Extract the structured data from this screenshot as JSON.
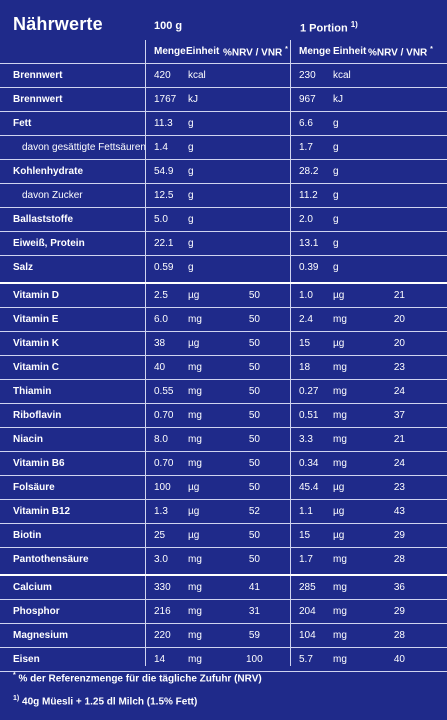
{
  "title": "Nährwerte",
  "header": {
    "per100": "100 g",
    "portion": "1 Portion",
    "portion_mark": "1)",
    "col_menge": "Menge",
    "col_einheit": "Einheit",
    "col_nrv": "%NRV / VNR",
    "col_nrv_mark": "*"
  },
  "rows": [
    {
      "name": "Brennwert",
      "m1": "420",
      "u1": "kcal",
      "n1": "",
      "m2": "230",
      "u2": "kcal",
      "n2": ""
    },
    {
      "name": "Brennwert",
      "m1": "1767",
      "u1": "kJ",
      "n1": "",
      "m2": "967",
      "u2": "kJ",
      "n2": ""
    },
    {
      "name": "Fett",
      "m1": "11.3",
      "u1": "g",
      "n1": "",
      "m2": "6.6",
      "u2": "g",
      "n2": ""
    },
    {
      "name": "davon gesättigte Fettsäuren",
      "m1": "1.4",
      "u1": "g",
      "n1": "",
      "m2": "1.7",
      "u2": "g",
      "n2": "",
      "indent": true
    },
    {
      "name": "Kohlenhydrate",
      "m1": "54.9",
      "u1": "g",
      "n1": "",
      "m2": "28.2",
      "u2": "g",
      "n2": ""
    },
    {
      "name": "davon Zucker",
      "m1": "12.5",
      "u1": "g",
      "n1": "",
      "m2": "11.2",
      "u2": "g",
      "n2": "",
      "indent": true
    },
    {
      "name": "Ballaststoffe",
      "m1": "5.0",
      "u1": "g",
      "n1": "",
      "m2": "2.0",
      "u2": "g",
      "n2": ""
    },
    {
      "name": "Eiweiß, Protein",
      "m1": "22.1",
      "u1": "g",
      "n1": "",
      "m2": "13.1",
      "u2": "g",
      "n2": ""
    },
    {
      "name": "Salz",
      "m1": "0.59",
      "u1": "g",
      "n1": "",
      "m2": "0.39",
      "u2": "g",
      "n2": ""
    },
    {
      "name": "Vitamin D",
      "m1": "2.5",
      "u1": "µg",
      "n1": "50",
      "m2": "1.0",
      "u2": "µg",
      "n2": "21"
    },
    {
      "name": "Vitamin E",
      "m1": "6.0",
      "u1": "mg",
      "n1": "50",
      "m2": "2.4",
      "u2": "mg",
      "n2": "20"
    },
    {
      "name": "Vitamin K",
      "m1": "38",
      "u1": "µg",
      "n1": "50",
      "m2": "15",
      "u2": "µg",
      "n2": "20"
    },
    {
      "name": "Vitamin C",
      "m1": "40",
      "u1": "mg",
      "n1": "50",
      "m2": "18",
      "u2": "mg",
      "n2": "23"
    },
    {
      "name": "Thiamin",
      "m1": "0.55",
      "u1": "mg",
      "n1": "50",
      "m2": "0.27",
      "u2": "mg",
      "n2": "24"
    },
    {
      "name": "Riboflavin",
      "m1": "0.70",
      "u1": "mg",
      "n1": "50",
      "m2": "0.51",
      "u2": "mg",
      "n2": "37"
    },
    {
      "name": "Niacin",
      "m1": "8.0",
      "u1": "mg",
      "n1": "50",
      "m2": "3.3",
      "u2": "mg",
      "n2": "21"
    },
    {
      "name": "Vitamin B6",
      "m1": "0.70",
      "u1": "mg",
      "n1": "50",
      "m2": "0.34",
      "u2": "mg",
      "n2": "24"
    },
    {
      "name": "Folsäure",
      "m1": "100",
      "u1": "µg",
      "n1": "50",
      "m2": "45.4",
      "u2": "µg",
      "n2": "23"
    },
    {
      "name": "Vitamin B12",
      "m1": "1.3",
      "u1": "µg",
      "n1": "52",
      "m2": "1.1",
      "u2": "µg",
      "n2": "43"
    },
    {
      "name": "Biotin",
      "m1": "25",
      "u1": "µg",
      "n1": "50",
      "m2": "15",
      "u2": "µg",
      "n2": "29"
    },
    {
      "name": "Pantothensäure",
      "m1": "3.0",
      "u1": "mg",
      "n1": "50",
      "m2": "1.7",
      "u2": "mg",
      "n2": "28"
    },
    {
      "name": "Calcium",
      "m1": "330",
      "u1": "mg",
      "n1": "41",
      "m2": "285",
      "u2": "mg",
      "n2": "36"
    },
    {
      "name": "Phosphor",
      "m1": "216",
      "u1": "mg",
      "n1": "31",
      "m2": "204",
      "u2": "mg",
      "n2": "29"
    },
    {
      "name": "Magnesium",
      "m1": "220",
      "u1": "mg",
      "n1": "59",
      "m2": "104",
      "u2": "mg",
      "n2": "28"
    },
    {
      "name": "Eisen",
      "m1": "14",
      "u1": "mg",
      "n1": "100",
      "m2": "5.7",
      "u2": "mg",
      "n2": "40"
    }
  ],
  "footnotes": {
    "nrv_mark": "*",
    "nrv_text": "% der Referenzmenge für die tägliche Zufuhr (NRV)",
    "portion_mark": "1)",
    "portion_text": "40g Müesli + 1.25 dl Milch (1.5% Fett)"
  }
}
